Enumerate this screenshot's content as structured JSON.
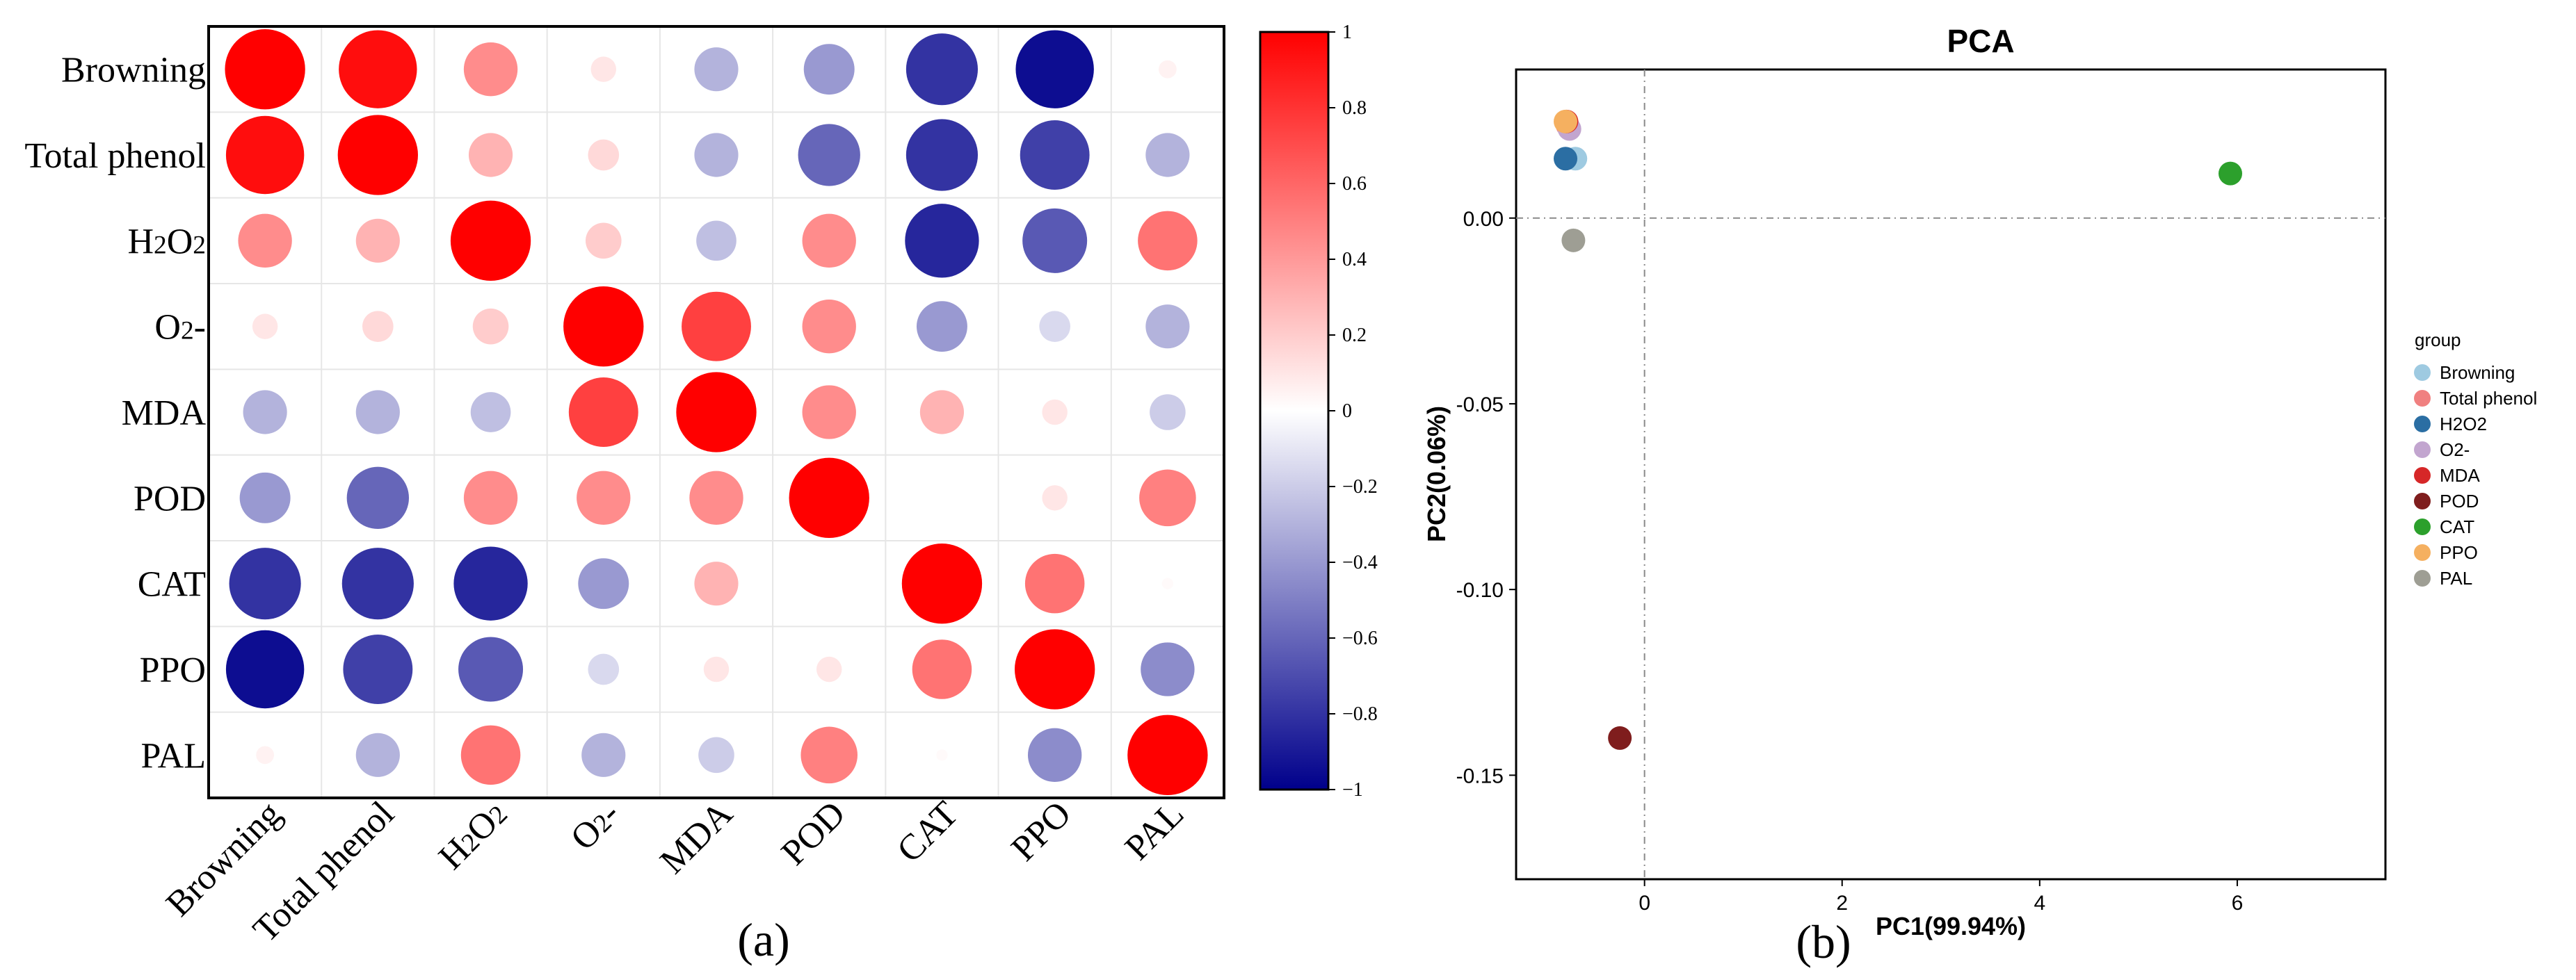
{
  "chart_data": [
    {
      "type": "heatmap",
      "subtype": "correlation-circles",
      "panel_label": "(a)",
      "row_labels": [
        "Browning",
        "Total phenol",
        "H2O2",
        "O2-",
        "MDA",
        "POD",
        "CAT",
        "PPO",
        "PAL"
      ],
      "col_labels": [
        "Browning",
        "Total phenol",
        "H2O2",
        "O2-",
        "MDA",
        "POD",
        "CAT",
        "PPO",
        "PAL"
      ],
      "matrix": [
        [
          1.0,
          0.95,
          0.45,
          0.1,
          -0.3,
          -0.4,
          -0.8,
          -0.95,
          0.05
        ],
        [
          0.95,
          1.0,
          0.3,
          0.15,
          -0.3,
          -0.6,
          -0.8,
          -0.75,
          -0.3
        ],
        [
          0.45,
          0.3,
          1.0,
          0.2,
          -0.25,
          0.45,
          -0.85,
          -0.65,
          0.55
        ],
        [
          0.1,
          0.15,
          0.2,
          1.0,
          0.75,
          0.45,
          -0.4,
          -0.15,
          -0.3
        ],
        [
          -0.3,
          -0.3,
          -0.25,
          0.75,
          1.0,
          0.45,
          0.3,
          0.1,
          -0.2
        ],
        [
          -0.4,
          -0.6,
          0.45,
          0.45,
          0.45,
          1.0,
          0.0,
          0.1,
          0.5
        ],
        [
          -0.8,
          -0.8,
          -0.85,
          -0.4,
          0.3,
          0.0,
          1.0,
          0.55,
          0.02
        ],
        [
          -0.95,
          -0.75,
          -0.65,
          -0.15,
          0.1,
          0.1,
          0.55,
          1.0,
          -0.45
        ],
        [
          0.05,
          -0.3,
          0.55,
          -0.3,
          -0.2,
          0.5,
          0.02,
          -0.45,
          1.0
        ]
      ],
      "colorbar": {
        "range": [
          -1,
          1
        ],
        "ticks": [
          1,
          0.8,
          0.6,
          0.4,
          0.2,
          0,
          -0.2,
          -0.4,
          -0.6,
          -0.8,
          -1
        ],
        "tick_labels": [
          "1",
          "0.8",
          "0.6",
          "0.4",
          "0.2",
          "0",
          "−0.2",
          "−0.4",
          "−0.6",
          "−0.8",
          "−1"
        ],
        "colors": {
          "low": "#00008b",
          "mid": "#ffffff",
          "high": "#ff0000"
        }
      }
    },
    {
      "type": "scatter",
      "title": "PCA",
      "panel_label": "(b)",
      "xlabel": "PC1(99.94%)",
      "ylabel": "PC2(0.06%)",
      "xlim": [
        -1.3,
        7.5
      ],
      "ylim": [
        -0.178,
        0.04
      ],
      "xticks": [
        0,
        2,
        4,
        6
      ],
      "yticks": [
        0.0,
        -0.05,
        -0.1,
        -0.15
      ],
      "ytick_labels": [
        "0.00",
        "-0.05",
        "-0.10",
        "-0.15"
      ],
      "reference_lines": {
        "x": 0,
        "y": 0
      },
      "legend": {
        "title": "group",
        "position": "right"
      },
      "series": [
        {
          "name": "Browning",
          "color": "#9ecae1",
          "x": -0.7,
          "y": 0.016
        },
        {
          "name": "Total phenol",
          "color": "#f08080",
          "x": -0.78,
          "y": 0.025
        },
        {
          "name": "H2O2",
          "color": "#2b6ea3",
          "x": -0.8,
          "y": 0.016
        },
        {
          "name": "O2-",
          "color": "#c2a5cf",
          "x": -0.76,
          "y": 0.024
        },
        {
          "name": "MDA",
          "color": "#d62728",
          "x": -0.79,
          "y": 0.026
        },
        {
          "name": "POD",
          "color": "#7f1d1d",
          "x": -0.25,
          "y": -0.14
        },
        {
          "name": "CAT",
          "color": "#2ca02c",
          "x": 5.93,
          "y": 0.012
        },
        {
          "name": "PPO",
          "color": "#f5b060",
          "x": -0.8,
          "y": 0.026
        },
        {
          "name": "PAL",
          "color": "#9e9e94",
          "x": -0.72,
          "y": -0.006
        }
      ]
    }
  ]
}
